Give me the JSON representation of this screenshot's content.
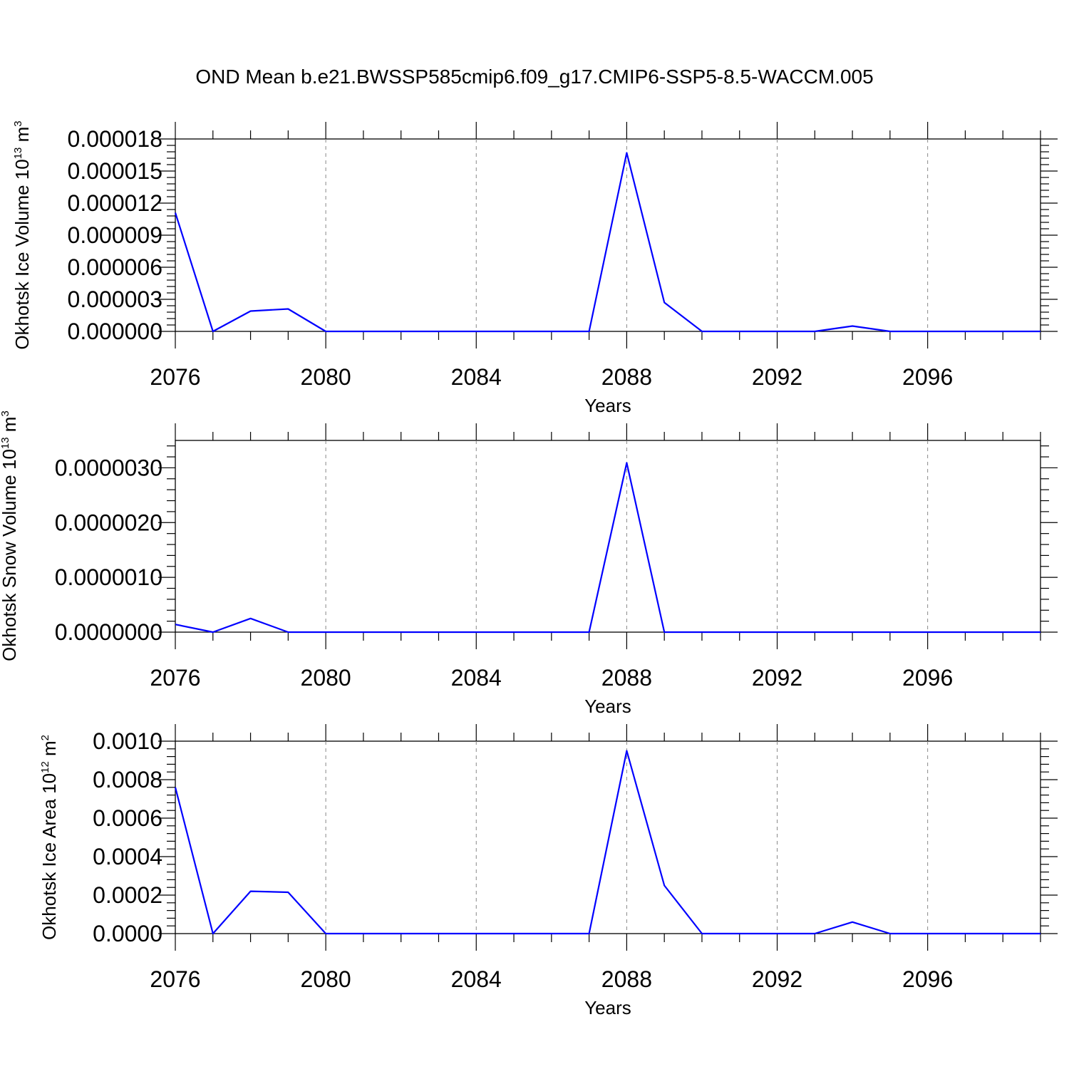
{
  "title": "OND Mean b.e21.BWSSP585cmip6.f09_g17.CMIP6-SSP5-8.5-WACCM.005",
  "colors": {
    "line": "#0000ff",
    "axis": "#000000",
    "grid": "#888888"
  },
  "chart_data": [
    {
      "type": "line",
      "xlabel": "Years",
      "ylabel_main": "Okhotsk Ice Volume 10",
      "ylabel_exp": "13",
      "ylabel_unit": " m",
      "ylabel_unit_exp": "3",
      "xlim": [
        2076,
        2099
      ],
      "ylim": [
        0,
        1.8e-05
      ],
      "xticks": [
        "2076",
        "2080",
        "2084",
        "2088",
        "2092",
        "2096"
      ],
      "yticks": [
        "0.000000",
        "0.000003",
        "0.000006",
        "0.000009",
        "0.000012",
        "0.000015",
        "0.000018"
      ],
      "grid_x": [
        2080,
        2084,
        2088,
        2092,
        2096
      ],
      "x": [
        2076,
        2077,
        2078,
        2079,
        2080,
        2081,
        2082,
        2083,
        2084,
        2085,
        2086,
        2087,
        2088,
        2089,
        2090,
        2091,
        2092,
        2093,
        2094,
        2095,
        2096,
        2097,
        2098,
        2099
      ],
      "values": [
        1.11e-05,
        0.0,
        1.9e-06,
        2.1e-06,
        0.0,
        0.0,
        0.0,
        0.0,
        0.0,
        0.0,
        0.0,
        0.0,
        1.67e-05,
        2.7e-06,
        0.0,
        0.0,
        0.0,
        0.0,
        5e-07,
        0.0,
        0.0,
        0.0,
        0.0,
        0.0
      ]
    },
    {
      "type": "line",
      "xlabel": "Years",
      "ylabel_main": "Okhotsk Snow Volume 10",
      "ylabel_exp": "13",
      "ylabel_unit": " m",
      "ylabel_unit_exp": "3",
      "xlim": [
        2076,
        2099
      ],
      "ylim": [
        0,
        3.5e-06
      ],
      "xticks": [
        "2076",
        "2080",
        "2084",
        "2088",
        "2092",
        "2096"
      ],
      "yticks": [
        "0.0000000",
        "0.0000010",
        "0.0000020",
        "0.0000030"
      ],
      "grid_x": [
        2080,
        2084,
        2088,
        2092,
        2096
      ],
      "x": [
        2076,
        2077,
        2078,
        2079,
        2080,
        2081,
        2082,
        2083,
        2084,
        2085,
        2086,
        2087,
        2088,
        2089,
        2090,
        2091,
        2092,
        2093,
        2094,
        2095,
        2096,
        2097,
        2098,
        2099
      ],
      "values": [
        1.4e-07,
        0.0,
        2.5e-07,
        0.0,
        0.0,
        0.0,
        0.0,
        0.0,
        0.0,
        0.0,
        0.0,
        0.0,
        3.09e-06,
        0.0,
        0.0,
        0.0,
        0.0,
        0.0,
        0.0,
        0.0,
        0.0,
        0.0,
        0.0,
        0.0
      ]
    },
    {
      "type": "line",
      "xlabel": "Years",
      "ylabel_main": "Okhotsk Ice Area 10",
      "ylabel_exp": "12",
      "ylabel_unit": " m",
      "ylabel_unit_exp": "2",
      "xlim": [
        2076,
        2099
      ],
      "ylim": [
        0,
        0.001
      ],
      "xticks": [
        "2076",
        "2080",
        "2084",
        "2088",
        "2092",
        "2096"
      ],
      "yticks": [
        "0.0000",
        "0.0002",
        "0.0004",
        "0.0006",
        "0.0008",
        "0.0010"
      ],
      "grid_x": [
        2080,
        2084,
        2088,
        2092,
        2096
      ],
      "x": [
        2076,
        2077,
        2078,
        2079,
        2080,
        2081,
        2082,
        2083,
        2084,
        2085,
        2086,
        2087,
        2088,
        2089,
        2090,
        2091,
        2092,
        2093,
        2094,
        2095,
        2096,
        2097,
        2098,
        2099
      ],
      "values": [
        0.00076,
        0.0,
        0.00022,
        0.000215,
        0.0,
        0.0,
        0.0,
        0.0,
        0.0,
        0.0,
        0.0,
        0.0,
        0.00095,
        0.00025,
        0.0,
        0.0,
        0.0,
        0.0,
        6e-05,
        0.0,
        0.0,
        0.0,
        0.0,
        0.0
      ]
    }
  ]
}
